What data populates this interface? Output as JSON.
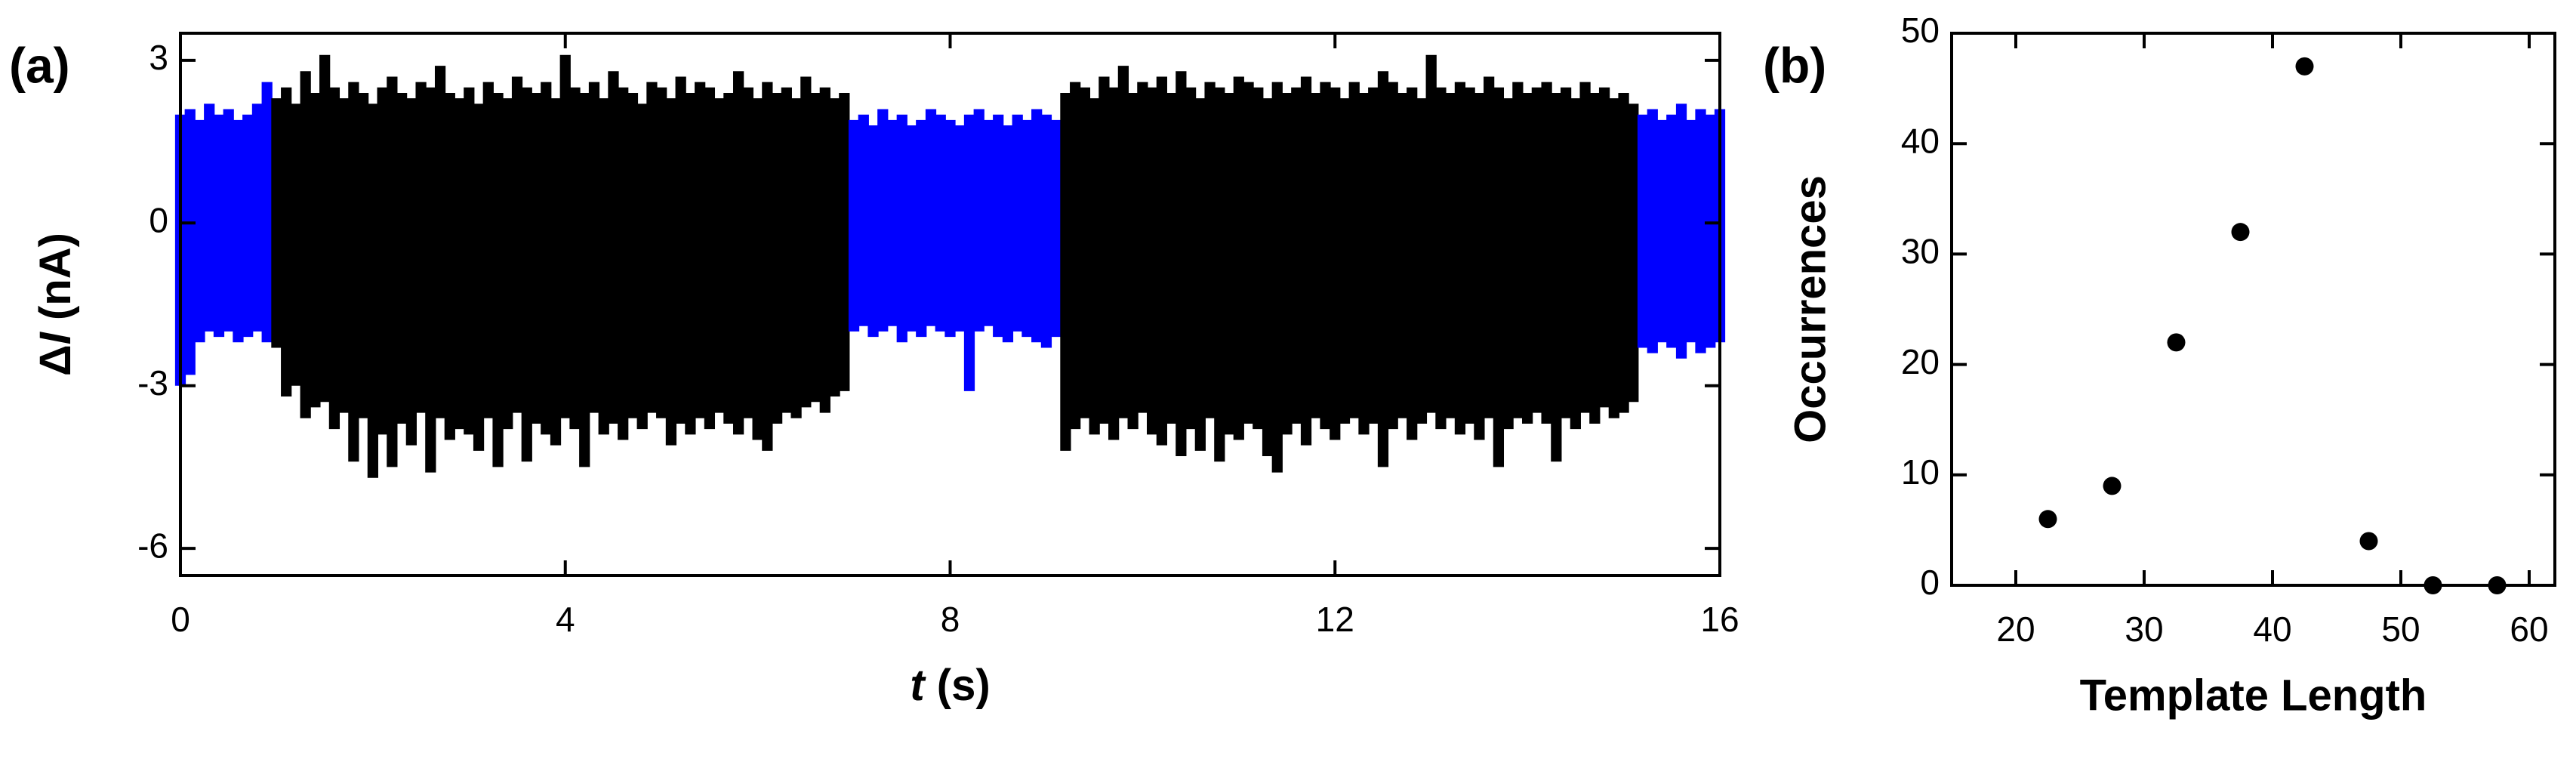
{
  "chart_data": [
    {
      "type": "band",
      "panel": "(a)",
      "ylabel": [
        "Δ",
        "I",
        " (nA)"
      ],
      "xlabel": [
        "t",
        " (s)"
      ],
      "xlim": [
        0,
        16
      ],
      "xticks": [
        0,
        4,
        8,
        12,
        16
      ],
      "ylim": [
        -6.5,
        3.5
      ],
      "yticks": [
        3,
        0,
        -3,
        -6
      ],
      "series": [
        {
          "color": "#0000ff",
          "x": [
            0.0,
            0.1,
            0.2,
            0.3,
            0.4,
            0.5,
            0.6,
            0.7,
            0.8,
            0.9,
            1.0
          ],
          "high": [
            2.0,
            2.1,
            1.9,
            2.2,
            2.0,
            2.1,
            1.9,
            2.0,
            2.2,
            2.6,
            2.1
          ],
          "low": [
            -3.0,
            -2.8,
            -2.2,
            -2.0,
            -2.1,
            -2.0,
            -2.2,
            -2.1,
            -2.0,
            -2.2,
            -2.1
          ]
        },
        {
          "color": "#000000",
          "x": [
            1.0,
            1.1,
            1.2,
            1.3,
            1.4,
            1.5,
            1.6,
            1.7,
            1.8,
            1.9,
            2.0,
            2.1,
            2.2,
            2.3,
            2.4,
            2.5,
            2.6,
            2.7,
            2.8,
            2.9,
            3.0,
            3.1,
            3.2,
            3.3,
            3.4,
            3.5,
            3.6,
            3.7,
            3.8,
            3.9,
            4.0,
            4.1,
            4.2,
            4.3,
            4.4,
            4.5,
            4.6,
            4.7,
            4.8,
            4.9,
            5.0,
            5.1,
            5.2,
            5.3,
            5.4,
            5.5,
            5.6,
            5.7,
            5.8,
            5.9,
            6.0,
            6.1,
            6.2,
            6.3,
            6.4,
            6.5,
            6.6,
            6.7,
            6.8,
            6.9
          ],
          "high": [
            2.3,
            2.5,
            2.2,
            2.8,
            2.4,
            3.1,
            2.5,
            2.3,
            2.6,
            2.4,
            2.2,
            2.5,
            2.7,
            2.4,
            2.3,
            2.6,
            2.5,
            2.9,
            2.4,
            2.3,
            2.5,
            2.2,
            2.6,
            2.4,
            2.3,
            2.7,
            2.5,
            2.4,
            2.6,
            2.3,
            3.1,
            2.5,
            2.4,
            2.6,
            2.3,
            2.8,
            2.5,
            2.4,
            2.2,
            2.6,
            2.5,
            2.3,
            2.7,
            2.4,
            2.6,
            2.5,
            2.3,
            2.4,
            2.8,
            2.5,
            2.3,
            2.6,
            2.4,
            2.5,
            2.3,
            2.7,
            2.4,
            2.5,
            2.3,
            2.4
          ],
          "low": [
            -2.3,
            -3.2,
            -3.0,
            -3.6,
            -3.4,
            -3.3,
            -3.8,
            -3.5,
            -4.4,
            -3.6,
            -4.7,
            -3.9,
            -4.5,
            -3.7,
            -4.1,
            -3.5,
            -4.6,
            -3.6,
            -4.0,
            -3.8,
            -3.9,
            -4.2,
            -3.6,
            -4.5,
            -3.8,
            -3.5,
            -4.4,
            -3.7,
            -3.9,
            -4.1,
            -3.6,
            -3.8,
            -4.5,
            -3.5,
            -3.9,
            -3.7,
            -4.0,
            -3.6,
            -3.8,
            -3.5,
            -3.6,
            -4.1,
            -3.7,
            -3.9,
            -3.6,
            -3.8,
            -3.5,
            -3.7,
            -3.9,
            -3.6,
            -4.0,
            -4.2,
            -3.7,
            -3.5,
            -3.6,
            -3.4,
            -3.3,
            -3.5,
            -3.2,
            -3.1
          ]
        },
        {
          "color": "#0000ff",
          "x": [
            7.0,
            7.1,
            7.2,
            7.3,
            7.4,
            7.5,
            7.6,
            7.7,
            7.8,
            7.9,
            8.0,
            8.1,
            8.2,
            8.3,
            8.4,
            8.5,
            8.6,
            8.7,
            8.8,
            8.9,
            9.0,
            9.1
          ],
          "high": [
            1.9,
            2.0,
            1.8,
            2.1,
            1.9,
            2.0,
            1.8,
            1.9,
            2.1,
            2.0,
            1.9,
            1.8,
            2.0,
            2.1,
            1.9,
            2.0,
            1.8,
            2.0,
            1.9,
            2.1,
            2.0,
            1.9
          ],
          "low": [
            -2.0,
            -1.9,
            -2.1,
            -2.0,
            -1.9,
            -2.2,
            -2.0,
            -2.1,
            -1.9,
            -2.0,
            -2.1,
            -2.0,
            -3.1,
            -2.0,
            -1.9,
            -2.1,
            -2.2,
            -2.0,
            -2.1,
            -2.2,
            -2.3,
            -2.1
          ]
        },
        {
          "color": "#000000",
          "x": [
            9.2,
            9.3,
            9.4,
            9.5,
            9.6,
            9.7,
            9.8,
            9.9,
            10.0,
            10.1,
            10.2,
            10.3,
            10.4,
            10.5,
            10.6,
            10.7,
            10.8,
            10.9,
            11.0,
            11.1,
            11.2,
            11.3,
            11.4,
            11.5,
            11.6,
            11.7,
            11.8,
            11.9,
            12.0,
            12.1,
            12.2,
            12.3,
            12.4,
            12.5,
            12.6,
            12.7,
            12.8,
            12.9,
            13.0,
            13.1,
            13.2,
            13.3,
            13.4,
            13.5,
            13.6,
            13.7,
            13.8,
            13.9,
            14.0,
            14.1,
            14.2,
            14.3,
            14.4,
            14.5,
            14.6,
            14.7,
            14.8,
            14.9,
            15.0,
            15.1
          ],
          "high": [
            2.4,
            2.6,
            2.5,
            2.3,
            2.7,
            2.5,
            2.9,
            2.4,
            2.6,
            2.5,
            2.7,
            2.4,
            2.8,
            2.5,
            2.3,
            2.6,
            2.5,
            2.4,
            2.7,
            2.6,
            2.5,
            2.3,
            2.6,
            2.4,
            2.5,
            2.7,
            2.4,
            2.6,
            2.5,
            2.3,
            2.6,
            2.4,
            2.5,
            2.8,
            2.6,
            2.4,
            2.5,
            2.3,
            3.1,
            2.5,
            2.4,
            2.6,
            2.5,
            2.4,
            2.7,
            2.5,
            2.3,
            2.6,
            2.4,
            2.5,
            2.6,
            2.4,
            2.5,
            2.3,
            2.6,
            2.4,
            2.5,
            2.3,
            2.4,
            2.2
          ],
          "low": [
            -4.2,
            -3.8,
            -3.6,
            -3.9,
            -3.7,
            -4.0,
            -3.6,
            -3.8,
            -3.5,
            -3.9,
            -4.1,
            -3.7,
            -4.3,
            -3.8,
            -4.2,
            -3.6,
            -4.4,
            -3.9,
            -4.0,
            -3.7,
            -3.8,
            -4.3,
            -4.6,
            -3.9,
            -3.7,
            -4.1,
            -3.6,
            -3.8,
            -4.0,
            -3.7,
            -3.6,
            -3.9,
            -3.7,
            -4.5,
            -3.8,
            -3.6,
            -4.0,
            -3.7,
            -3.5,
            -3.8,
            -3.6,
            -3.9,
            -3.7,
            -4.0,
            -3.6,
            -4.5,
            -3.8,
            -3.6,
            -3.7,
            -3.5,
            -3.7,
            -4.4,
            -3.6,
            -3.8,
            -3.5,
            -3.7,
            -3.4,
            -3.6,
            -3.5,
            -3.3
          ]
        },
        {
          "color": "#0000ff",
          "x": [
            15.2,
            15.3,
            15.4,
            15.5,
            15.6,
            15.7,
            15.8,
            15.9,
            16.0
          ],
          "high": [
            2.0,
            2.1,
            1.9,
            2.0,
            2.2,
            1.9,
            2.1,
            2.0,
            2.1
          ],
          "low": [
            -2.3,
            -2.4,
            -2.2,
            -2.3,
            -2.5,
            -2.2,
            -2.4,
            -2.3,
            -2.2
          ]
        }
      ]
    },
    {
      "type": "scatter",
      "panel": "(b)",
      "ylabel": "Occurrences",
      "xlabel": "Template Length",
      "xlim": [
        15,
        62
      ],
      "xticks": [
        20,
        30,
        40,
        50,
        60
      ],
      "ylim": [
        0,
        50
      ],
      "yticks": [
        0,
        10,
        20,
        30,
        40,
        50
      ],
      "color": "#000000",
      "x": [
        22.5,
        27.5,
        32.5,
        37.5,
        42.5,
        47.5,
        52.5,
        57.5
      ],
      "values": [
        6,
        9,
        22,
        32,
        47,
        4,
        0,
        0
      ]
    }
  ]
}
